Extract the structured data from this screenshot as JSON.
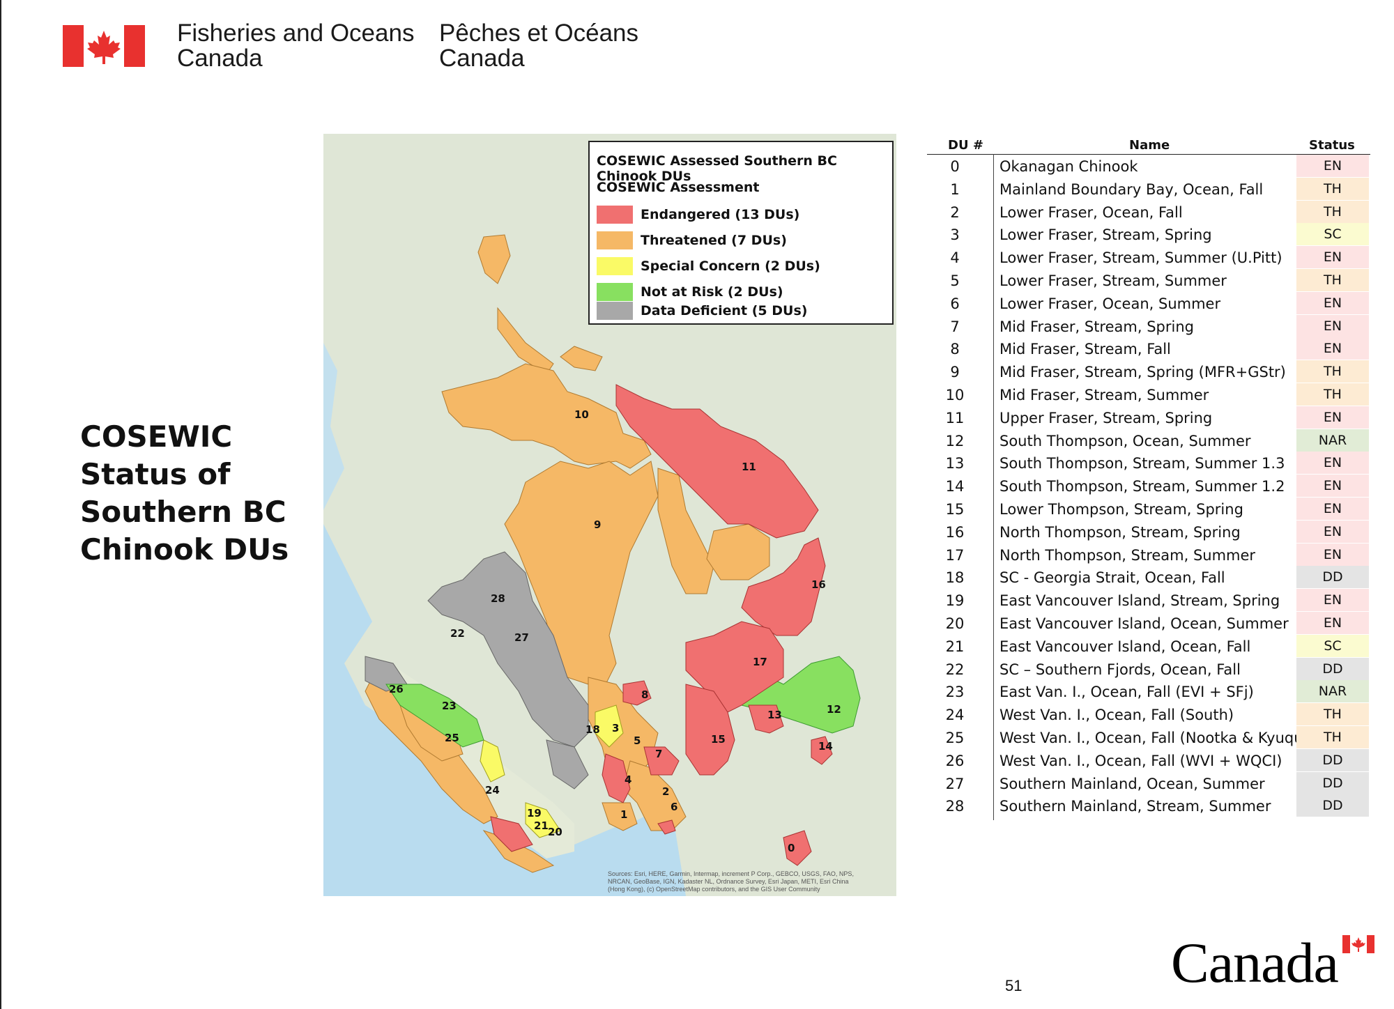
{
  "header": {
    "dept_en": [
      "Fisheries and Oceans",
      "Canada"
    ],
    "dept_fr": [
      "Pêches et Océans",
      "Canada"
    ],
    "flag_colors": {
      "red": "#e8312f",
      "white": "#ffffff"
    }
  },
  "slide_title": [
    "COSEWIC",
    "Status of",
    "Southern BC",
    "Chinook DUs"
  ],
  "map": {
    "legend": {
      "title": "COSEWIC Assessed Southern BC Chinook DUs",
      "subtitle": "COSEWIC Assessment",
      "items": [
        {
          "label": "Endangered (13 DUs)",
          "color": "#f07070"
        },
        {
          "label": "Threatened (7 DUs)",
          "color": "#f5b866"
        },
        {
          "label": "Special Concern (2 DUs)",
          "color": "#fafa66"
        },
        {
          "label": "Not at Risk (2 DUs)",
          "color": "#88e060"
        },
        {
          "label": "Data Deficient (5 DUs)",
          "color": "#a8a8a8"
        }
      ]
    },
    "du_labels": [
      "10",
      "11",
      "9",
      "16",
      "28",
      "22",
      "27",
      "17",
      "26",
      "23",
      "8",
      "18",
      "3",
      "5",
      "13",
      "12",
      "25",
      "15",
      "14",
      "7",
      "4",
      "2",
      "24",
      "6",
      "19",
      "1",
      "21",
      "20",
      "0"
    ],
    "attribution": [
      "Sources: Esri, HERE, Garmin, Intermap, increment P Corp., GEBCO, USGS, FAO, NPS,",
      "NRCAN, GeoBase, IGN, Kadaster NL, Ordnance Survey, Esri Japan, METI, Esri China",
      "(Hong Kong), (c) OpenStreetMap contributors, and the GIS User Community"
    ]
  },
  "table": {
    "headers": {
      "num": "DU #",
      "name": "Name",
      "status": "Status"
    },
    "rows": [
      {
        "num": "0",
        "name": "Okanagan Chinook",
        "status": "EN"
      },
      {
        "num": "1",
        "name": "Mainland Boundary Bay, Ocean, Fall",
        "status": "TH"
      },
      {
        "num": "2",
        "name": "Lower Fraser, Ocean, Fall",
        "status": "TH"
      },
      {
        "num": "3",
        "name": "Lower Fraser, Stream, Spring",
        "status": "SC"
      },
      {
        "num": "4",
        "name": "Lower Fraser, Stream, Summer (U.Pitt)",
        "status": "EN"
      },
      {
        "num": "5",
        "name": "Lower Fraser, Stream, Summer",
        "status": "TH"
      },
      {
        "num": "6",
        "name": "Lower Fraser, Ocean, Summer",
        "status": "EN"
      },
      {
        "num": "7",
        "name": "Mid Fraser, Stream, Spring",
        "status": "EN"
      },
      {
        "num": "8",
        "name": "Mid Fraser, Stream, Fall",
        "status": "EN"
      },
      {
        "num": "9",
        "name": "Mid Fraser, Stream, Spring (MFR+GStr)",
        "status": "TH"
      },
      {
        "num": "10",
        "name": "Mid Fraser, Stream, Summer",
        "status": "TH"
      },
      {
        "num": "11",
        "name": "Upper Fraser, Stream, Spring",
        "status": "EN"
      },
      {
        "num": "12",
        "name": "South Thompson, Ocean, Summer",
        "status": "NAR"
      },
      {
        "num": "13",
        "name": "South Thompson, Stream, Summer 1.3",
        "status": "EN"
      },
      {
        "num": "14",
        "name": "South Thompson, Stream, Summer 1.2",
        "status": "EN"
      },
      {
        "num": "15",
        "name": "Lower Thompson, Stream, Spring",
        "status": "EN"
      },
      {
        "num": "16",
        "name": "North Thompson, Stream, Spring",
        "status": "EN"
      },
      {
        "num": "17",
        "name": "North Thompson, Stream, Summer",
        "status": "EN"
      },
      {
        "num": "18",
        "name": "SC - Georgia Strait, Ocean, Fall",
        "status": "DD"
      },
      {
        "num": "19",
        "name": "East Vancouver Island, Stream, Spring",
        "status": "EN"
      },
      {
        "num": "20",
        "name": "East Vancouver Island, Ocean, Summer",
        "status": "EN"
      },
      {
        "num": "21",
        "name": "East Vancouver Island, Ocean, Fall",
        "status": "SC"
      },
      {
        "num": "22",
        "name": "SC – Southern Fjords, Ocean, Fall",
        "status": "DD"
      },
      {
        "num": "23",
        "name": "East Van. I., Ocean, Fall (EVI + SFj)",
        "status": "NAR"
      },
      {
        "num": "24",
        "name": "West Van. I., Ocean, Fall (South)",
        "status": "TH"
      },
      {
        "num": "25",
        "name": "West Van. I., Ocean, Fall (Nootka & Kyuquot)",
        "status": "TH"
      },
      {
        "num": "26",
        "name": "West Van. I., Ocean, Fall (WVI + WQCI)",
        "status": "DD"
      },
      {
        "num": "27",
        "name": "Southern Mainland, Ocean, Summer",
        "status": "DD"
      },
      {
        "num": "28",
        "name": "Southern Mainland, Stream, Summer",
        "status": "DD"
      }
    ]
  },
  "footer": {
    "page_number": "51",
    "wordmark": "Canada"
  }
}
